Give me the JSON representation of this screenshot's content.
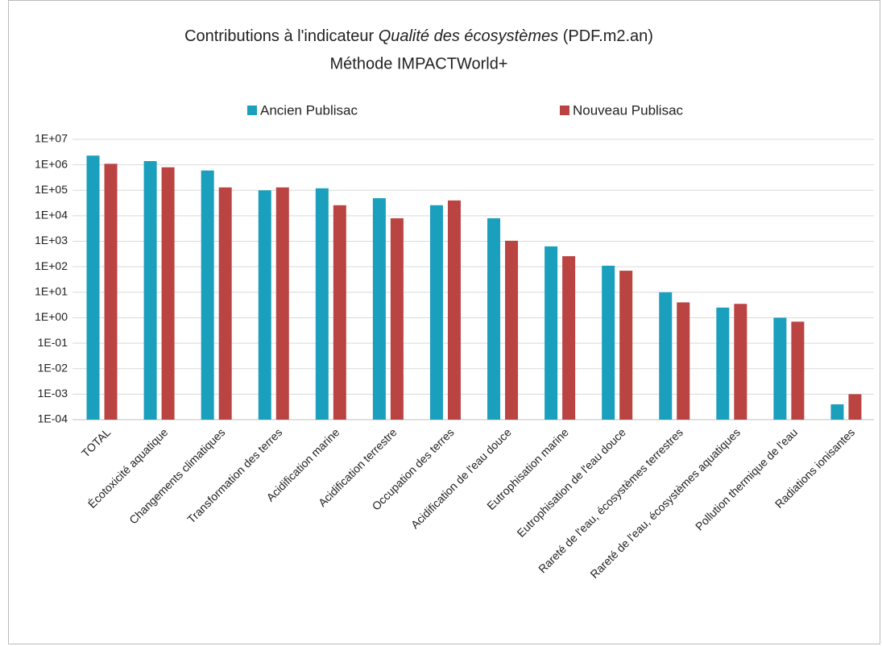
{
  "chart_data": {
    "type": "bar",
    "title": [
      "Contributions à l'indicateur",
      "Qualité des écosystèmes",
      "(PDF.m2.an)"
    ],
    "subtitle": "Méthode IMPACTWorld+",
    "categories": [
      "TOTAL",
      "Écotoxicité aquatique",
      "Changements climatiques",
      "Transformation des terres",
      "Acidification marine",
      "Acidification terrestre",
      "Occupation des terres",
      "Acidification de l'eau douce",
      "Eutrophisation marine",
      "Eutrophisation de l'eau douce",
      "Rareté de l'eau, écosystèmes terrestres",
      "Rareté de l'eau, écosystèmes aquatiques",
      "Pollution thermique de l'eau",
      "Radiations ionisantes"
    ],
    "series": [
      {
        "name": "Ancien Publisac",
        "color": "#1a9fbd",
        "values": [
          2300000,
          1400000,
          600000,
          100000,
          120000,
          49000,
          26000,
          8000,
          630,
          110,
          10,
          2.5,
          1,
          0.0004
        ]
      },
      {
        "name": "Nouveau Publisac",
        "color": "#b94442",
        "values": [
          1100000,
          800000,
          130000,
          130000,
          26000,
          8000,
          40000,
          1050,
          260,
          70,
          4,
          3.5,
          0.7,
          0.001
        ]
      }
    ],
    "log_scale": true,
    "ylim": [
      0.0001,
      10000000
    ],
    "yticks": [
      {
        "value": 10000000,
        "label": "1E+07"
      },
      {
        "value": 1000000,
        "label": "1E+06"
      },
      {
        "value": 100000,
        "label": "1E+05"
      },
      {
        "value": 10000,
        "label": "1E+04"
      },
      {
        "value": 1000,
        "label": "1E+03"
      },
      {
        "value": 100,
        "label": "1E+02"
      },
      {
        "value": 10,
        "label": "1E+01"
      },
      {
        "value": 1,
        "label": "1E+00"
      },
      {
        "value": 0.1,
        "label": "1E-01"
      },
      {
        "value": 0.01,
        "label": "1E-02"
      },
      {
        "value": 0.001,
        "label": "1E-03"
      },
      {
        "value": 0.0001,
        "label": "1E-04"
      }
    ],
    "grid": true,
    "legend_position": "top"
  }
}
